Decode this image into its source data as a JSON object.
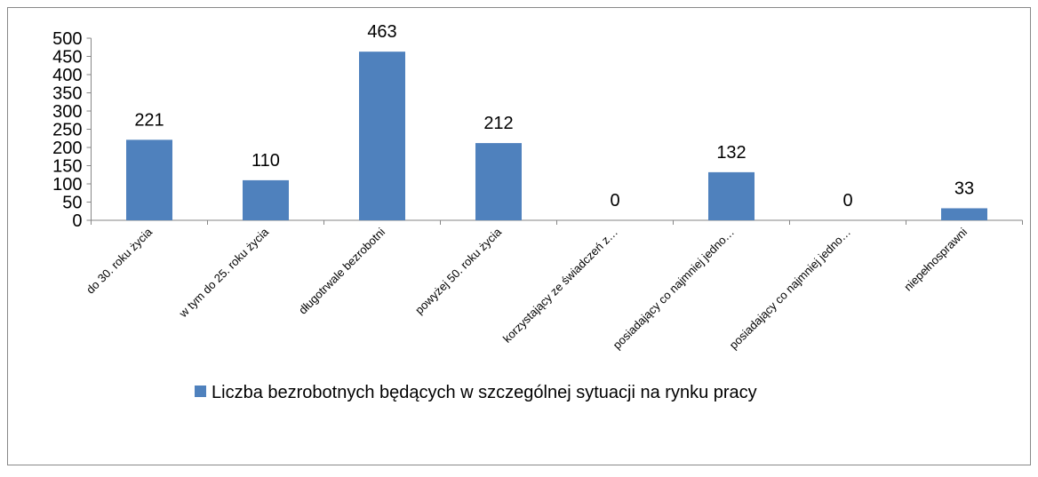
{
  "chart_data": {
    "type": "bar",
    "categories": [
      "do 30. roku życia",
      "w tym do 25. roku życia",
      "długotrwale bezrobotni",
      "powyżej 50. roku życia",
      "korzystający ze świadczeń z…",
      "posiadający co najmniej jedno…",
      "posiadający co najmniej jedno…",
      "niepełnosprawni"
    ],
    "series": [
      {
        "name": "Liczba bezrobotnych będących w szczególnej sytuacji na rynku pracy",
        "color": "#4f81bd",
        "values": [
          221,
          110,
          463,
          212,
          0,
          132,
          0,
          33
        ]
      }
    ],
    "ylim": [
      0,
      500
    ],
    "yticks": [
      0,
      50,
      100,
      150,
      200,
      250,
      300,
      350,
      400,
      450,
      500
    ],
    "grid": false,
    "legend": "bottom"
  }
}
